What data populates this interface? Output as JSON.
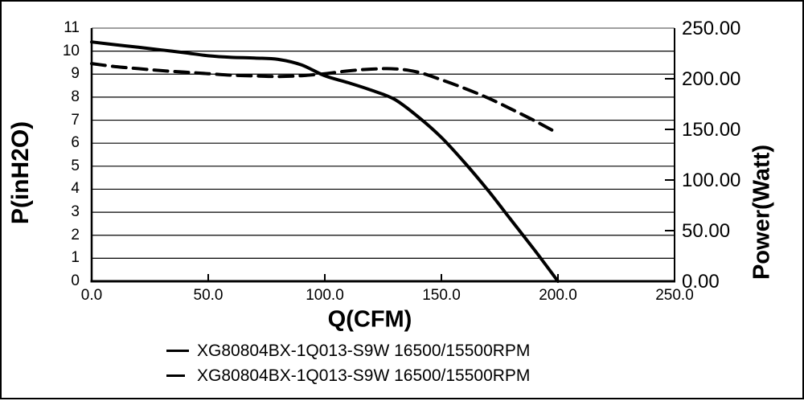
{
  "chart": {
    "x_axis": {
      "label": "Q(CFM)",
      "ticks": [
        "0.0",
        "50.0",
        "100.0",
        "150.0",
        "200.0",
        "250.0"
      ]
    },
    "y_left": {
      "label": "P(inH2O)",
      "ticks": [
        "0",
        "1",
        "2",
        "3",
        "4",
        "5",
        "6",
        "7",
        "8",
        "9",
        "10",
        "11"
      ]
    },
    "y_right": {
      "label": "Power(Watt)",
      "ticks": [
        "0.00",
        "50.00",
        "100.00",
        "150.00",
        "200.00",
        "250.00"
      ]
    }
  },
  "legend": [
    {
      "label": "XG80804BX-1Q013-S9W 16500/15500RPM",
      "style": "solid"
    },
    {
      "label": "XG80804BX-1Q013-S9W 16500/15500RPM",
      "style": "dashed"
    }
  ],
  "colors": {
    "line": "#000000",
    "grid": "#000000",
    "grid_top": "#666666",
    "background": "#ffffff"
  },
  "chart_data": {
    "type": "line",
    "title": "",
    "xlabel": "Q(CFM)",
    "ylabel_left": "P(inH2O)",
    "ylabel_right": "Power(Watt)",
    "x_range": [
      0,
      250
    ],
    "y_left_range": [
      0,
      11
    ],
    "y_right_range": [
      0,
      250
    ],
    "grid": "horizontal",
    "legend_position": "bottom",
    "x": [
      0,
      10,
      20,
      30,
      40,
      50,
      60,
      70,
      80,
      90,
      100,
      110,
      120,
      130,
      140,
      150,
      160,
      170,
      180,
      190,
      200
    ],
    "series": [
      {
        "name": "XG80804BX-1Q013-S9W 16500/15500RPM",
        "style": "solid",
        "axis": "left",
        "unit": "inH2O",
        "values": [
          10.4,
          10.28,
          10.17,
          10.05,
          9.93,
          9.8,
          9.73,
          9.7,
          9.64,
          9.4,
          8.93,
          8.63,
          8.3,
          7.9,
          7.15,
          6.25,
          5.15,
          3.95,
          2.65,
          1.35,
          0.0
        ]
      },
      {
        "name": "XG80804BX-1Q013-S9W 16500/15500RPM",
        "style": "dashed",
        "axis": "right",
        "unit": "Watt",
        "values": [
          215,
          212,
          210,
          208,
          206.5,
          205,
          203.5,
          202.8,
          202.2,
          203,
          205,
          207.8,
          209.5,
          209.8,
          206.5,
          199,
          190.5,
          181,
          170,
          158.5,
          146
        ]
      }
    ]
  }
}
